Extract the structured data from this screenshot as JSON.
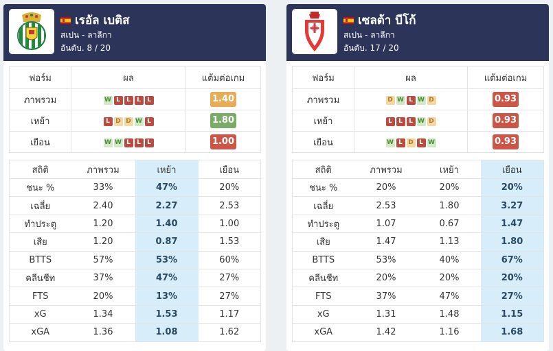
{
  "teams": [
    {
      "name": "เรอัล เบติส",
      "league": "สเปน - ลาลีกา",
      "rank_label": "อันดับ. 8 / 20",
      "logo_icon": "real-betis-crest-icon",
      "form_headers": [
        "ฟอร์ม",
        "ผล",
        "แต้มต่อเกม"
      ],
      "form_rows": [
        {
          "label": "ภาพรวม",
          "results": [
            "W",
            "L",
            "L",
            "L",
            "L"
          ],
          "ppg": "1.40",
          "ppg_color": "#e6ac56"
        },
        {
          "label": "เหย้า",
          "results": [
            "L",
            "D",
            "D",
            "W",
            "L"
          ],
          "ppg": "1.80",
          "ppg_color": "#7aac67"
        },
        {
          "label": "เยือน",
          "results": [
            "W",
            "W",
            "L",
            "L",
            "L"
          ],
          "ppg": "1.00",
          "ppg_color": "#cc5646"
        }
      ],
      "stats_headers": [
        "สถิติ",
        "ภาพรวม",
        "เหย้า",
        "เยือน"
      ],
      "highlight_col": 2,
      "stats_rows": [
        {
          "label": "ชนะ %",
          "values": [
            "33%",
            "47%",
            "20%"
          ]
        },
        {
          "label": "เฉลี่ย",
          "values": [
            "2.40",
            "2.27",
            "2.53"
          ]
        },
        {
          "label": "ทำประตู",
          "values": [
            "1.20",
            "1.40",
            "1.00"
          ]
        },
        {
          "label": "เสีย",
          "values": [
            "1.20",
            "0.87",
            "1.53"
          ]
        },
        {
          "label": "BTTS",
          "values": [
            "57%",
            "53%",
            "60%"
          ]
        },
        {
          "label": "คลีนชีท",
          "values": [
            "37%",
            "47%",
            "27%"
          ]
        },
        {
          "label": "FTS",
          "values": [
            "20%",
            "13%",
            "27%"
          ]
        },
        {
          "label": "xG",
          "values": [
            "1.34",
            "1.53",
            "1.17"
          ]
        },
        {
          "label": "xGA",
          "values": [
            "1.36",
            "1.08",
            "1.62"
          ]
        }
      ]
    },
    {
      "name": "เซลต้า บีโก้",
      "league": "สเปน - ลาลีกา",
      "rank_label": "อันดับ. 17 / 20",
      "logo_icon": "celta-vigo-crest-icon",
      "form_headers": [
        "ฟอร์ม",
        "ผล",
        "แต้มต่อเกม"
      ],
      "form_rows": [
        {
          "label": "ภาพรวม",
          "results": [
            "D",
            "W",
            "L",
            "W",
            "D"
          ],
          "ppg": "0.93",
          "ppg_color": "#cc5646"
        },
        {
          "label": "เหย้า",
          "results": [
            "L",
            "L",
            "L",
            "W",
            "D"
          ],
          "ppg": "0.93",
          "ppg_color": "#cc5646"
        },
        {
          "label": "เยือน",
          "results": [
            "W",
            "L",
            "D",
            "L",
            "W"
          ],
          "ppg": "0.93",
          "ppg_color": "#cc5646"
        }
      ],
      "stats_headers": [
        "สถิติ",
        "ภาพรวม",
        "เหย้า",
        "เยือน"
      ],
      "highlight_col": 3,
      "stats_rows": [
        {
          "label": "ชนะ %",
          "values": [
            "20%",
            "20%",
            "20%"
          ]
        },
        {
          "label": "เฉลี่ย",
          "values": [
            "2.53",
            "1.80",
            "3.27"
          ]
        },
        {
          "label": "ทำประตู",
          "values": [
            "1.07",
            "0.67",
            "1.47"
          ]
        },
        {
          "label": "เสีย",
          "values": [
            "1.47",
            "1.13",
            "1.80"
          ]
        },
        {
          "label": "BTTS",
          "values": [
            "53%",
            "40%",
            "67%"
          ]
        },
        {
          "label": "คลีนชีท",
          "values": [
            "20%",
            "20%",
            "20%"
          ]
        },
        {
          "label": "FTS",
          "values": [
            "37%",
            "47%",
            "27%"
          ]
        },
        {
          "label": "xG",
          "values": [
            "1.31",
            "1.48",
            "1.15"
          ]
        },
        {
          "label": "xGA",
          "values": [
            "1.42",
            "1.16",
            "1.68"
          ]
        }
      ]
    }
  ],
  "colors": {
    "header_bg": "#2c3459",
    "highlight_col_bg": "#d7edf9",
    "win": "#d2e8c6",
    "loss": "#ba4b41",
    "draw": "#f4d7a3"
  }
}
